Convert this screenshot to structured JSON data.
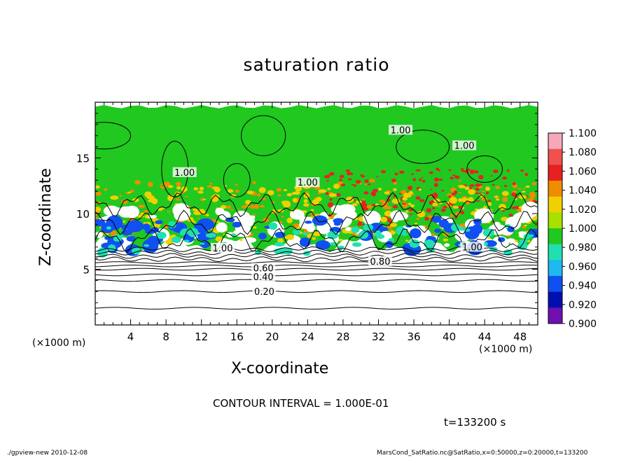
{
  "chart_data": {
    "type": "heatmap",
    "title": "saturation ratio",
    "xlabel": "X-coordinate",
    "ylabel": "Z-coordinate",
    "x_unit_left": "(×1000 m)",
    "x_unit_right": "(×1000 m)",
    "xlim": [
      0,
      50
    ],
    "ylim": [
      0,
      20
    ],
    "x_ticks": [
      4,
      8,
      12,
      16,
      20,
      24,
      28,
      32,
      36,
      40,
      44,
      48
    ],
    "y_ticks": [
      5,
      10,
      15
    ],
    "x_tick_labels": [
      "4",
      "8",
      "12",
      "16",
      "20",
      "24",
      "28",
      "32",
      "36",
      "40",
      "44",
      "48"
    ],
    "y_tick_labels": [
      "5",
      "10",
      "15"
    ],
    "colorbar": {
      "levels": [
        "1.100",
        "1.080",
        "1.060",
        "1.040",
        "1.020",
        "1.000",
        "0.980",
        "0.960",
        "0.940",
        "0.920",
        "0.900"
      ],
      "colors": [
        "#f7a8b8",
        "#f05050",
        "#e82020",
        "#f08c00",
        "#f0d000",
        "#a8e000",
        "#20c820",
        "#20e0b0",
        "#20b8f0",
        "#1050f0",
        "#0010b0",
        "#7010b0"
      ]
    },
    "contour_labels": [
      {
        "text": "0.20",
        "x": 19.1,
        "z": 2.9
      },
      {
        "text": "0.40",
        "x": 19.0,
        "z": 4.2
      },
      {
        "text": "0.60",
        "x": 19.0,
        "z": 5.0
      },
      {
        "text": "0.80",
        "x": 32.2,
        "z": 5.6
      },
      {
        "text": "1.00",
        "x": 14.4,
        "z": 6.8
      },
      {
        "text": "1.00",
        "x": 42.6,
        "z": 6.9
      },
      {
        "text": "1.00",
        "x": 10.1,
        "z": 13.6
      },
      {
        "text": "1.00",
        "x": 24.0,
        "z": 12.7
      },
      {
        "text": "1.00",
        "x": 34.5,
        "z": 17.4
      },
      {
        "text": "1.00",
        "x": 41.7,
        "z": 16.0
      }
    ],
    "footer_notes": {
      "contour_interval": "CONTOUR INTERVAL = 1.000E-01",
      "time": "t=133200 s",
      "left": "./gpview-new   2010-12-08",
      "right": "MarsCond_SatRatio.nc@SatRatio,x=0:50000,z=0:20000,t=133200"
    }
  }
}
